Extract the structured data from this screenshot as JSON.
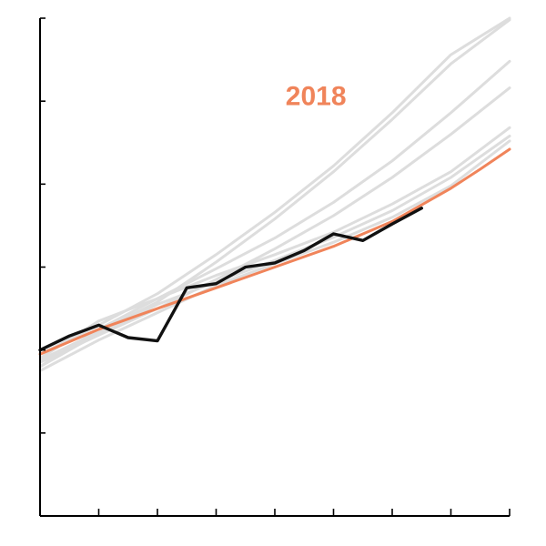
{
  "chart_data": {
    "type": "line",
    "title": "",
    "xlabel": "",
    "ylabel": "",
    "x_ticks_count": 9,
    "y_ticks_count": 6,
    "grid": false,
    "legend": "none",
    "xlim": [
      0,
      8
    ],
    "ylim": [
      0,
      6
    ],
    "annotations": [
      {
        "text": "2018",
        "color": "#f0845a",
        "x": 4.7,
        "y": 5.04
      }
    ],
    "series": [
      {
        "role": "background",
        "color": "#dddddd",
        "x": [
          0,
          1,
          2,
          3,
          4,
          5,
          6,
          7,
          8
        ],
        "y": [
          1.95,
          2.3,
          2.68,
          3.15,
          3.66,
          4.22,
          4.86,
          5.56,
          6.0
        ]
      },
      {
        "role": "background",
        "color": "#dddddd",
        "x": [
          0,
          1,
          2,
          3,
          4,
          5,
          6,
          7,
          8
        ],
        "y": [
          1.88,
          2.22,
          2.58,
          3.06,
          3.58,
          4.15,
          4.78,
          5.45,
          5.98
        ]
      },
      {
        "role": "background",
        "color": "#dddddd",
        "x": [
          0,
          1,
          2,
          3,
          4,
          5,
          6,
          7,
          8
        ],
        "y": [
          1.8,
          2.25,
          2.62,
          2.98,
          3.35,
          3.78,
          4.28,
          4.86,
          5.48
        ]
      },
      {
        "role": "background",
        "color": "#dddddd",
        "x": [
          0,
          1,
          2,
          3,
          4,
          5,
          6,
          7,
          8
        ],
        "y": [
          1.85,
          2.18,
          2.5,
          2.85,
          3.22,
          3.62,
          4.08,
          4.6,
          5.16
        ]
      },
      {
        "role": "background",
        "color": "#dddddd",
        "x": [
          0,
          1,
          2,
          3,
          4,
          5,
          6,
          7,
          8
        ],
        "y": [
          1.9,
          2.35,
          2.62,
          2.9,
          3.15,
          3.42,
          3.76,
          4.15,
          4.68
        ]
      },
      {
        "role": "background",
        "color": "#dddddd",
        "x": [
          0,
          1,
          2,
          3,
          4,
          5,
          6,
          7,
          8
        ],
        "y": [
          1.8,
          2.2,
          2.55,
          2.82,
          3.08,
          3.36,
          3.68,
          4.08,
          4.58
        ]
      },
      {
        "role": "background",
        "color": "#dddddd",
        "x": [
          0,
          1,
          2,
          3,
          4,
          5,
          6,
          7,
          8
        ],
        "y": [
          1.75,
          2.12,
          2.45,
          2.78,
          3.04,
          3.3,
          3.6,
          3.98,
          4.52
        ]
      },
      {
        "role": "trend",
        "name": "2018",
        "color": "#f0845a",
        "x": [
          0,
          1,
          2,
          3,
          4,
          5,
          6,
          7,
          7.5,
          8
        ],
        "y": [
          1.95,
          2.25,
          2.5,
          2.75,
          3.0,
          3.25,
          3.55,
          3.95,
          4.18,
          4.42
        ]
      },
      {
        "role": "actual",
        "color": "#111111",
        "x": [
          0,
          0.5,
          1,
          1.5,
          2,
          2.5,
          3,
          3.5,
          4,
          4.5,
          5,
          5.5,
          6,
          6.5
        ],
        "y": [
          2.0,
          2.17,
          2.3,
          2.15,
          2.11,
          2.75,
          2.8,
          3.0,
          3.05,
          3.2,
          3.4,
          3.32,
          3.52,
          3.71
        ]
      }
    ]
  }
}
